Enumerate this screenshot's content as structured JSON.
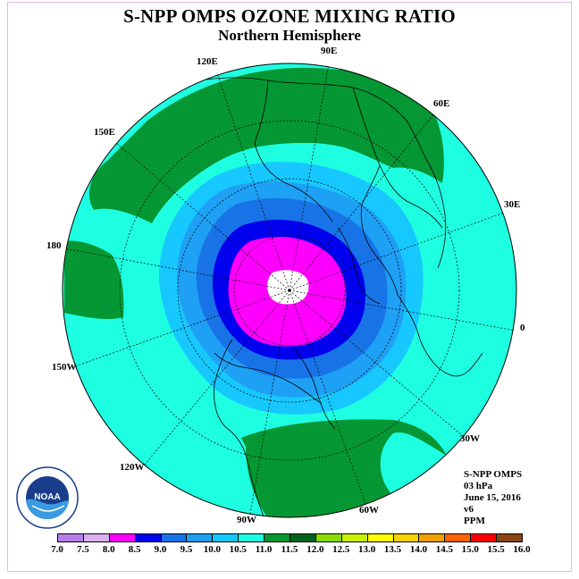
{
  "title": "S-NPP OMPS OZONE MIXING RATIO",
  "subtitle": "Northern Hemisphere",
  "longitude_labels": [
    {
      "key": "lon_90e",
      "text": "90E"
    },
    {
      "key": "lon_120e",
      "text": "120E"
    },
    {
      "key": "lon_60e",
      "text": "60E"
    },
    {
      "key": "lon_150e",
      "text": "150E"
    },
    {
      "key": "lon_30e",
      "text": "30E"
    },
    {
      "key": "lon_180",
      "text": "180"
    },
    {
      "key": "lon_0",
      "text": "0"
    },
    {
      "key": "lon_150w",
      "text": "150W"
    },
    {
      "key": "lon_30w",
      "text": "30W"
    },
    {
      "key": "lon_120w",
      "text": "120W"
    },
    {
      "key": "lon_60w",
      "text": "60W"
    },
    {
      "key": "lon_90w",
      "text": "90W"
    }
  ],
  "info": {
    "instrument": "S-NPP OMPS",
    "level": "03 hPa",
    "date": "June 15, 2016",
    "version": "v6",
    "units": "PPM"
  },
  "logo": {
    "icon": "noaa-logo-icon",
    "text": "NOAA"
  },
  "colorbar": {
    "ticks": [
      "7.0",
      "7.5",
      "8.0",
      "8.5",
      "9.0",
      "9.5",
      "10.0",
      "10.5",
      "11.0",
      "11.5",
      "12.0",
      "12.5",
      "13.0",
      "13.5",
      "14.0",
      "14.5",
      "15.0",
      "15.5",
      "16.0"
    ],
    "colors": [
      "#b77fea",
      "#dcb0f0",
      "#ff00ff",
      "#0000ee",
      "#1874e6",
      "#1ea0f5",
      "#17c8ff",
      "#1effe1",
      "#049733",
      "#00641e",
      "#88dc00",
      "#c8f000",
      "#ffff00",
      "#f5d200",
      "#f0a000",
      "#ff6400",
      "#ff0000",
      "#8b4513"
    ]
  },
  "map_colors": {
    "ocean_teal": "#1effe1",
    "green_band": "#049733",
    "cyan": "#17c8ff",
    "light_blue": "#1ea0f5",
    "blue": "#1874e6",
    "dark_blue": "#0000ee",
    "magenta": "#ff00ff",
    "white_core": "#ffffff"
  }
}
